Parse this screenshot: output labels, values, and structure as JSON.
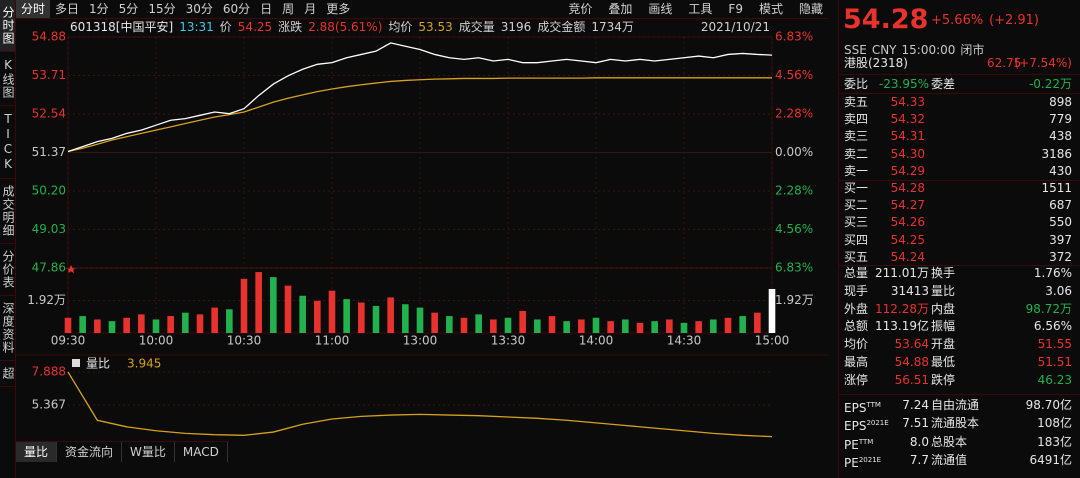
{
  "tabs_left": [
    "分时图",
    "K线图",
    "TICK",
    "成交明细",
    "分价表",
    "深度资料",
    "超"
  ],
  "toolbar": {
    "left": [
      "分时",
      "多日",
      "1分",
      "5分",
      "15分",
      "30分",
      "60分",
      "日",
      "周",
      "月",
      "更多"
    ],
    "right": [
      "竞价",
      "叠加",
      "画线",
      "工具",
      "F9",
      "模式",
      "隐藏"
    ]
  },
  "info": {
    "code": "601318[中国平安]",
    "time": "13:31",
    "price_label": "价",
    "price": "54.25",
    "change_label": "涨跌",
    "change": "2.88(5.61%)",
    "avg_label": "均价",
    "avg": "53.53",
    "vol_label": "成交量",
    "vol": "3196",
    "amount_label": "成交金额",
    "amount": "1734万",
    "date": "2021/10/21"
  },
  "intraday": {
    "type": "line",
    "xlim": [
      0,
      240
    ],
    "xticks": [
      {
        "value": 0,
        "label": "09:30"
      },
      {
        "value": 30,
        "label": "10:00"
      },
      {
        "value": 60,
        "label": "10:30"
      },
      {
        "value": 90,
        "label": "11:00"
      },
      {
        "value": 120,
        "label": "13:00"
      },
      {
        "value": 150,
        "label": "13:30"
      },
      {
        "value": 180,
        "label": "14:00"
      },
      {
        "value": 210,
        "label": "14:30"
      },
      {
        "value": 240,
        "label": "15:00"
      }
    ],
    "ylim": [
      47.86,
      54.88
    ],
    "yticks": [
      54.88,
      53.71,
      52.54,
      51.37,
      {
        "value": 50.2,
        "label": "50.20"
      },
      49.03,
      47.86
    ],
    "tick_colors": [
      "#e8322d",
      "#e8322d",
      "#e8322d",
      "#c8c8c8",
      "#22b14c",
      "#22b14c",
      "#22b14c"
    ],
    "pct_ticks": [
      "6.83%",
      "4.56%",
      "2.28%",
      "0.00%",
      "2.28%",
      "4.56%",
      "6.83%"
    ],
    "x": [
      0,
      5,
      10,
      15,
      20,
      25,
      30,
      35,
      40,
      45,
      50,
      55,
      60,
      65,
      70,
      75,
      80,
      85,
      90,
      95,
      100,
      105,
      110,
      115,
      120,
      125,
      130,
      135,
      140,
      145,
      150,
      155,
      160,
      165,
      170,
      175,
      180,
      185,
      190,
      195,
      200,
      205,
      210,
      215,
      220,
      225,
      230,
      235,
      240
    ],
    "price": [
      51.4,
      51.55,
      51.7,
      51.8,
      51.95,
      52.05,
      52.2,
      52.35,
      52.4,
      52.5,
      52.6,
      52.55,
      52.7,
      53.1,
      53.45,
      53.7,
      53.9,
      54.05,
      54.1,
      54.25,
      54.35,
      54.45,
      54.7,
      54.6,
      54.5,
      54.35,
      54.25,
      54.2,
      54.25,
      54.15,
      54.2,
      54.1,
      54.1,
      54.15,
      54.2,
      54.15,
      54.1,
      54.2,
      54.15,
      54.2,
      54.15,
      54.2,
      54.25,
      54.3,
      54.25,
      54.35,
      54.38,
      54.35,
      54.33
    ],
    "price_color": "#ffffff",
    "avg": [
      51.4,
      51.5,
      51.62,
      51.75,
      51.85,
      51.95,
      52.05,
      52.15,
      52.25,
      52.35,
      52.45,
      52.52,
      52.6,
      52.75,
      52.9,
      53.02,
      53.12,
      53.22,
      53.3,
      53.37,
      53.43,
      53.48,
      53.53,
      53.56,
      53.58,
      53.6,
      53.61,
      53.62,
      53.62,
      53.62,
      53.63,
      53.63,
      53.63,
      53.63,
      53.63,
      53.63,
      53.64,
      53.64,
      53.64,
      53.64,
      53.64,
      53.64,
      53.64,
      53.64,
      53.64,
      53.64,
      53.64,
      53.64,
      53.64
    ],
    "avg_color": "#d7a11d",
    "volume": {
      "ylim": [
        0,
        3.84
      ],
      "yticks": [
        {
          "value": 1.92,
          "label": "1.92万"
        }
      ],
      "values": [
        0.9,
        1.0,
        0.8,
        0.7,
        0.9,
        1.1,
        0.8,
        1.0,
        1.2,
        1.1,
        1.5,
        1.4,
        3.2,
        3.6,
        3.3,
        2.8,
        2.2,
        1.9,
        2.5,
        2.0,
        1.8,
        1.6,
        2.1,
        1.7,
        1.5,
        1.2,
        1.0,
        0.9,
        1.1,
        0.8,
        0.9,
        1.3,
        0.8,
        1.0,
        0.7,
        0.8,
        0.9,
        0.7,
        0.8,
        0.6,
        0.7,
        0.8,
        0.6,
        0.7,
        0.8,
        0.9,
        1.0,
        1.2,
        2.6
      ],
      "colors": [
        "#e8322d",
        "#22b14c",
        "#e8322d",
        "#22b14c",
        "#e8322d",
        "#e8322d",
        "#22b14c",
        "#e8322d",
        "#22b14c",
        "#e8322d",
        "#e8322d",
        "#22b14c",
        "#e8322d",
        "#e8322d",
        "#22b14c",
        "#e8322d",
        "#22b14c",
        "#e8322d",
        "#e8322d",
        "#22b14c",
        "#e8322d",
        "#22b14c",
        "#e8322d",
        "#22b14c",
        "#22b14c",
        "#e8322d",
        "#22b14c",
        "#e8322d",
        "#22b14c",
        "#e8322d",
        "#22b14c",
        "#e8322d",
        "#22b14c",
        "#e8322d",
        "#22b14c",
        "#e8322d",
        "#22b14c",
        "#e8322d",
        "#22b14c",
        "#e8322d",
        "#22b14c",
        "#e8322d",
        "#22b14c",
        "#e8322d",
        "#22b14c",
        "#e8322d",
        "#22b14c",
        "#e8322d",
        "#ffffff"
      ]
    }
  },
  "lower": {
    "type": "line",
    "label": "量比",
    "value": "3.945",
    "ylim": [
      2.693,
      7.888
    ],
    "yticks": [
      7.888,
      5.367
    ],
    "tick_colors": [
      "#e8322d",
      "#c8c8c8"
    ],
    "x": [
      0,
      10,
      20,
      30,
      40,
      50,
      60,
      70,
      80,
      90,
      100,
      110,
      120,
      130,
      140,
      150,
      160,
      170,
      180,
      190,
      200,
      210,
      220,
      230,
      240
    ],
    "values": [
      7.888,
      4.2,
      3.7,
      3.4,
      3.2,
      3.1,
      3.05,
      3.3,
      3.9,
      4.3,
      4.5,
      4.6,
      4.65,
      4.6,
      4.55,
      4.45,
      4.35,
      4.2,
      4.0,
      3.8,
      3.6,
      3.4,
      3.2,
      3.05,
      2.95
    ],
    "color": "#d7a11d"
  },
  "bottom_tabs": [
    "量比",
    "资金流向",
    "W量比",
    "MACD"
  ],
  "quote": {
    "price": "54.28",
    "pct": "+5.66%",
    "chg": "(+2.91)",
    "meta": [
      "SSE",
      "CNY",
      "15:00:00",
      "闭市"
    ],
    "hk_label": "港股(2318)",
    "hk_price": "62.75",
    "hk_pct": "(+7.54%)",
    "ratio_label": "委比",
    "ratio": "-23.95%",
    "diff_label": "委差",
    "diff": "-0.22万"
  },
  "sell": [
    {
      "label": "卖五",
      "price": "54.33",
      "volume": "898"
    },
    {
      "label": "卖四",
      "price": "54.32",
      "volume": "779"
    },
    {
      "label": "卖三",
      "price": "54.31",
      "volume": "438"
    },
    {
      "label": "卖二",
      "price": "54.30",
      "volume": "3186"
    },
    {
      "label": "卖一",
      "price": "54.29",
      "volume": "430"
    }
  ],
  "buy": [
    {
      "label": "买一",
      "price": "54.28",
      "volume": "1511"
    },
    {
      "label": "买二",
      "price": "54.27",
      "volume": "687"
    },
    {
      "label": "买三",
      "price": "54.26",
      "volume": "550"
    },
    {
      "label": "买四",
      "price": "54.25",
      "volume": "397"
    },
    {
      "label": "买五",
      "price": "54.24",
      "volume": "372"
    }
  ],
  "stats": [
    {
      "l1": "总量",
      "v1": "211.01万",
      "l2": "换手",
      "v2": "1.76%",
      "c1": "#e6e6e6",
      "c2": "#e6e6e6"
    },
    {
      "l1": "现手",
      "v1": "31413",
      "l2": "量比",
      "v2": "3.06",
      "c1": "#e6e6e6",
      "c2": "#e6e6e6"
    },
    {
      "l1": "外盘",
      "v1": "112.28万",
      "l2": "内盘",
      "v2": "98.72万",
      "c1": "#e8322d",
      "c2": "#22b14c"
    },
    {
      "l1": "总额",
      "v1": "113.19亿",
      "l2": "振幅",
      "v2": "6.56%",
      "c1": "#e6e6e6",
      "c2": "#e6e6e6"
    },
    {
      "l1": "均价",
      "v1": "53.64",
      "l2": "开盘",
      "v2": "51.55",
      "c1": "#e8322d",
      "c2": "#e8322d"
    },
    {
      "l1": "最高",
      "v1": "54.88",
      "l2": "最低",
      "v2": "51.51",
      "c1": "#e8322d",
      "c2": "#e8322d"
    },
    {
      "l1": "涨停",
      "v1": "56.51",
      "l2": "跌停",
      "v2": "46.23",
      "c1": "#e8322d",
      "c2": "#22b14c"
    }
  ],
  "fundamentals": [
    {
      "l1": "EPS",
      "s1": "TTM",
      "v1": "7.24",
      "l2": "自由流通",
      "v2": "98.70亿"
    },
    {
      "l1": "EPS",
      "s1": "2021E",
      "v1": "7.51",
      "l2": "流通股本",
      "v2": "108亿"
    },
    {
      "l1": "PE",
      "s1": "TTM",
      "v1": "8.0",
      "l2": "总股本",
      "v2": "183亿"
    },
    {
      "l1": "PE",
      "s1": "2021E",
      "v1": "7.7",
      "l2": "流通值",
      "v2": "6491亿"
    }
  ]
}
